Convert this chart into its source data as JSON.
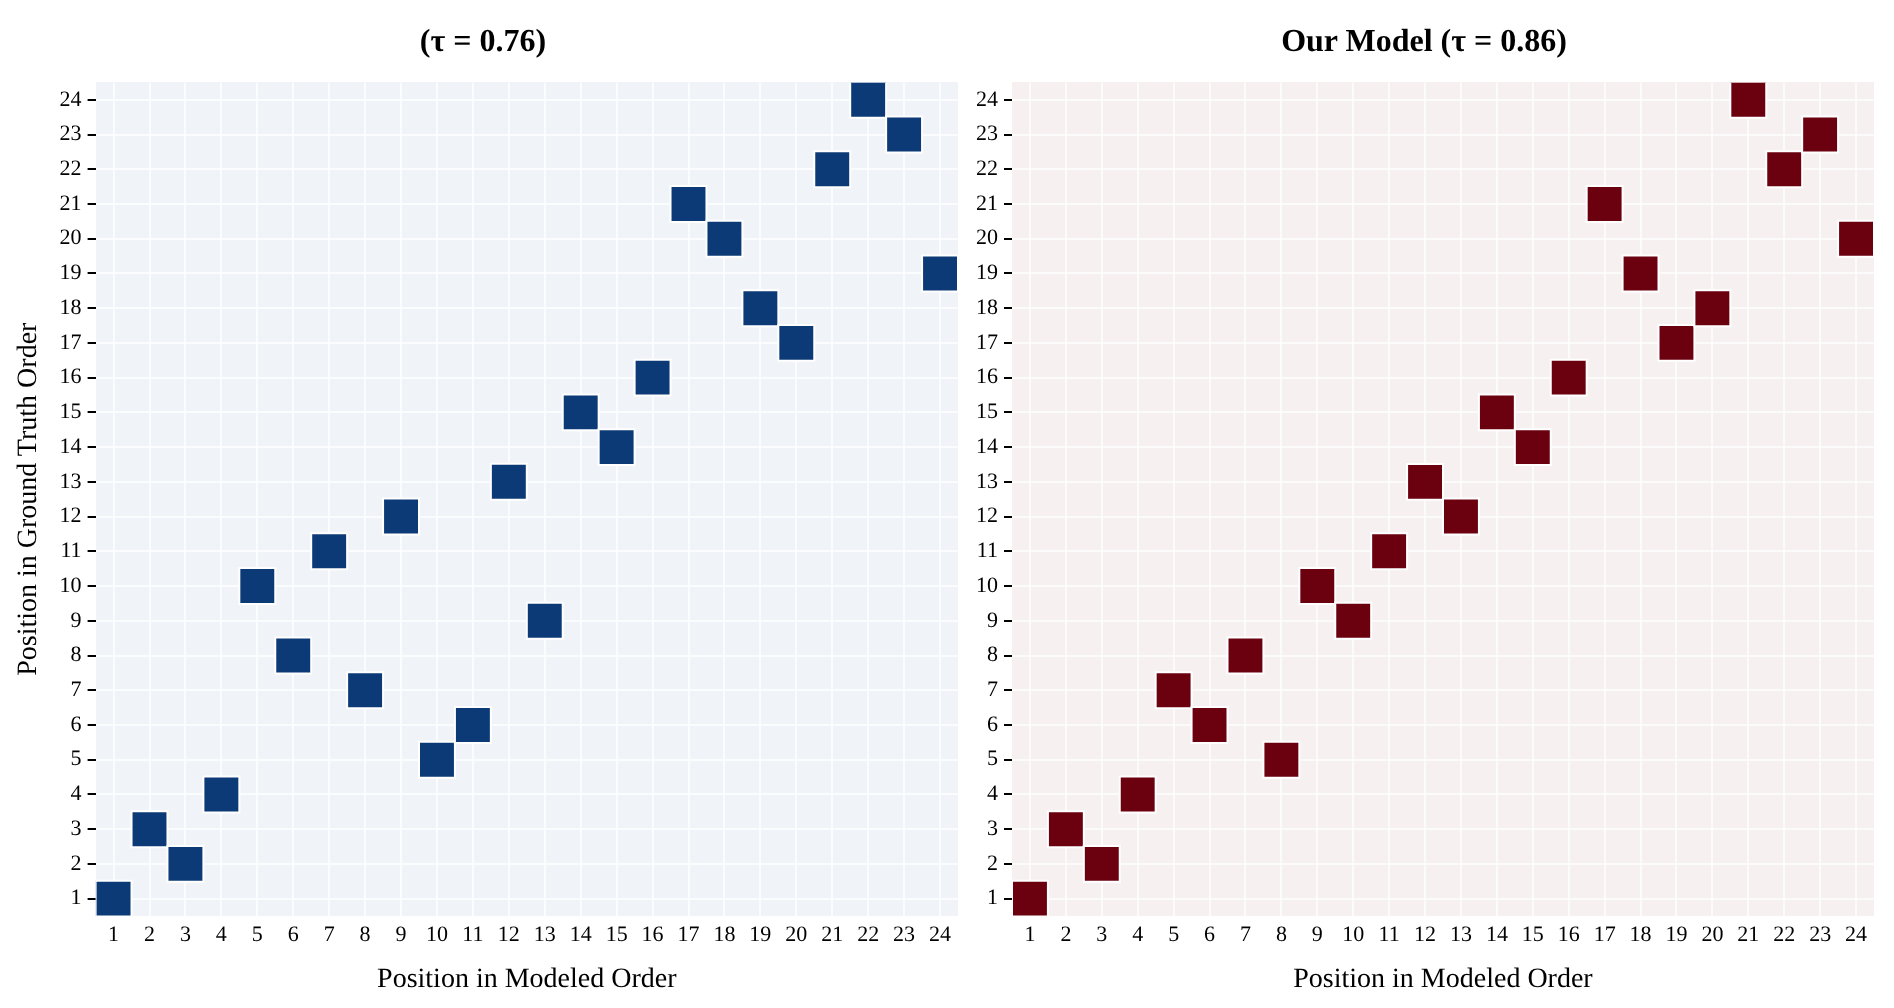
{
  "chart_data": [
    {
      "type": "scatter",
      "title": "(τ = 0.76)",
      "xlabel": "Position in Modeled Order",
      "ylabel": "Position in Ground Truth Order",
      "marker": "square",
      "grid": true,
      "xlim": [
        0.5,
        24.5
      ],
      "xticks": [
        1,
        2,
        3,
        4,
        5,
        6,
        7,
        8,
        9,
        10,
        11,
        12,
        13,
        14,
        15,
        16,
        17,
        18,
        19,
        20,
        21,
        22,
        23,
        24
      ],
      "ylim": [
        0.5,
        24.5
      ],
      "yticks": [
        1,
        2,
        3,
        4,
        5,
        6,
        7,
        8,
        9,
        10,
        11,
        12,
        13,
        14,
        15,
        16,
        17,
        18,
        19,
        20,
        21,
        22,
        23,
        24
      ],
      "x": [
        1,
        2,
        3,
        4,
        5,
        6,
        7,
        8,
        9,
        10,
        11,
        12,
        13,
        14,
        15,
        16,
        17,
        18,
        19,
        20,
        21,
        22,
        23,
        24
      ],
      "series": [
        {
          "color": "#0b3a76",
          "values": [
            1,
            3,
            2,
            4,
            10,
            8,
            11,
            7,
            12,
            5,
            6,
            13,
            9,
            15,
            14,
            16,
            21,
            20,
            18,
            17,
            22,
            24,
            23,
            19
          ]
        }
      ]
    },
    {
      "type": "scatter",
      "title": "Our Model (τ = 0.86)",
      "xlabel": "Position in Modeled Order",
      "marker": "square",
      "grid": true,
      "xlim": [
        0.5,
        24.5
      ],
      "xticks": [
        1,
        2,
        3,
        4,
        5,
        6,
        7,
        8,
        9,
        10,
        11,
        12,
        13,
        14,
        15,
        16,
        17,
        18,
        19,
        20,
        21,
        22,
        23,
        24
      ],
      "ylim": [
        0.5,
        24.5
      ],
      "yticks": [
        1,
        2,
        3,
        4,
        5,
        6,
        7,
        8,
        9,
        10,
        11,
        12,
        13,
        14,
        15,
        16,
        17,
        18,
        19,
        20,
        21,
        22,
        23,
        24
      ],
      "x": [
        1,
        2,
        3,
        4,
        5,
        6,
        7,
        8,
        9,
        10,
        11,
        12,
        13,
        14,
        15,
        16,
        17,
        18,
        19,
        20,
        21,
        22,
        23,
        24
      ],
      "series": [
        {
          "color": "#6b010e",
          "values": [
            1,
            3,
            2,
            4,
            7,
            6,
            8,
            5,
            10,
            9,
            11,
            13,
            12,
            15,
            14,
            16,
            21,
            19,
            17,
            18,
            24,
            22,
            23,
            20
          ]
        }
      ]
    }
  ]
}
